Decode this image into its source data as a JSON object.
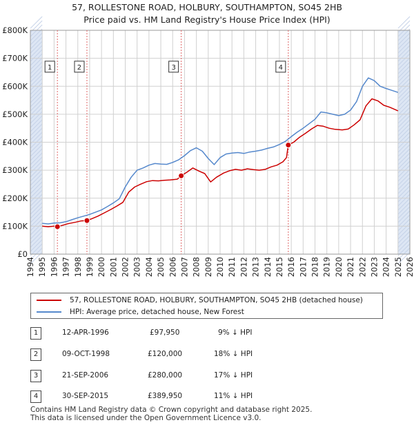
{
  "header": {
    "title_line1": "57, ROLLESTONE ROAD, HOLBURY, SOUTHAMPTON, SO45 2HB",
    "title_line2": "Price paid vs. HM Land Registry's House Price Index (HPI)"
  },
  "colors": {
    "price_line": "#cc0000",
    "hpi_line": "#5588cc",
    "marker_fill": "#cc0000",
    "shade": "#dde6f4",
    "grid": "#d0d0d0",
    "vline": "#e06666"
  },
  "chart_data": {
    "type": "line",
    "title": "57, ROLLESTONE ROAD, HOLBURY, SOUTHAMPTON, SO45 2HB",
    "subtitle": "Price paid vs. HM Land Registry's House Price Index (HPI)",
    "xlabel": "",
    "ylabel": "",
    "xlim": [
      1994,
      2026
    ],
    "ylim": [
      0,
      800000
    ],
    "grid": true,
    "y_ticks": [
      {
        "value": 0,
        "label": "£0"
      },
      {
        "value": 100000,
        "label": "£100K"
      },
      {
        "value": 200000,
        "label": "£200K"
      },
      {
        "value": 300000,
        "label": "£300K"
      },
      {
        "value": 400000,
        "label": "£400K"
      },
      {
        "value": 500000,
        "label": "£500K"
      },
      {
        "value": 600000,
        "label": "£600K"
      },
      {
        "value": 700000,
        "label": "£700K"
      },
      {
        "value": 800000,
        "label": "£800K"
      }
    ],
    "x_ticks": [
      "1994",
      "1995",
      "1996",
      "1997",
      "1998",
      "1999",
      "2000",
      "2001",
      "2002",
      "2003",
      "2004",
      "2005",
      "2006",
      "2007",
      "2008",
      "2009",
      "2010",
      "2011",
      "2012",
      "2013",
      "2014",
      "2015",
      "2016",
      "2017",
      "2018",
      "2019",
      "2020",
      "2021",
      "2022",
      "2023",
      "2024",
      "2025",
      "2026"
    ],
    "shaded_ranges": [
      [
        1994,
        1995.0
      ],
      [
        2025.0,
        2026
      ]
    ],
    "series": [
      {
        "name": "57, ROLLESTONE ROAD, HOLBURY, SOUTHAMPTON, SO45 2HB (detached house)",
        "color": "#cc0000",
        "x": [
          1995.0,
          1995.5,
          1996.0,
          1996.28,
          1996.7,
          1997.2,
          1997.8,
          1998.3,
          1998.77,
          1999.2,
          1999.7,
          2000.3,
          2000.8,
          2001.3,
          2001.8,
          2002.3,
          2002.8,
          2003.3,
          2003.8,
          2004.3,
          2004.8,
          2005.3,
          2005.8,
          2006.4,
          2006.72,
          2007.2,
          2007.7,
          2008.2,
          2008.7,
          2009.2,
          2009.7,
          2010.3,
          2010.8,
          2011.3,
          2011.8,
          2012.3,
          2012.8,
          2013.3,
          2013.8,
          2014.3,
          2014.8,
          2015.3,
          2015.6,
          2015.75,
          2016.2,
          2016.7,
          2017.2,
          2017.7,
          2018.2,
          2018.7,
          2019.2,
          2019.7,
          2020.3,
          2020.8,
          2021.3,
          2021.8,
          2022.3,
          2022.8,
          2023.3,
          2023.8,
          2024.3,
          2024.8,
          2025.0
        ],
        "values": [
          100000,
          98000,
          100000,
          97950,
          103000,
          109000,
          114000,
          119000,
          120000,
          127000,
          136000,
          149000,
          160000,
          172000,
          185000,
          222000,
          240000,
          250000,
          259000,
          263000,
          262000,
          264000,
          265000,
          268000,
          280000,
          293000,
          308000,
          297000,
          288000,
          258000,
          275000,
          290000,
          298000,
          303000,
          300000,
          305000,
          302000,
          300000,
          303000,
          312000,
          318000,
          330000,
          345000,
          389950,
          400000,
          418000,
          432000,
          447000,
          460000,
          457000,
          450000,
          446000,
          444000,
          447000,
          462000,
          480000,
          530000,
          555000,
          548000,
          532000,
          525000,
          516000,
          512000
        ]
      },
      {
        "name": "HPI: Average price, detached house, New Forest",
        "color": "#5588cc",
        "x": [
          1995.0,
          1995.5,
          1996.0,
          1996.5,
          1997.0,
          1997.5,
          1998.0,
          1998.5,
          1999.0,
          1999.5,
          2000.0,
          2000.5,
          2001.0,
          2001.5,
          2002.0,
          2002.5,
          2003.0,
          2003.5,
          2004.0,
          2004.5,
          2005.0,
          2005.5,
          2006.0,
          2006.5,
          2007.0,
          2007.5,
          2008.0,
          2008.5,
          2009.0,
          2009.5,
          2010.0,
          2010.5,
          2011.0,
          2011.5,
          2012.0,
          2012.5,
          2013.0,
          2013.5,
          2014.0,
          2014.5,
          2015.0,
          2015.5,
          2016.0,
          2016.5,
          2017.0,
          2017.5,
          2018.0,
          2018.5,
          2019.0,
          2019.5,
          2020.0,
          2020.5,
          2021.0,
          2021.5,
          2022.0,
          2022.5,
          2023.0,
          2023.5,
          2024.0,
          2024.5,
          2025.0
        ],
        "values": [
          110000,
          108000,
          111000,
          112000,
          116000,
          123000,
          130000,
          136000,
          142000,
          150000,
          158000,
          170000,
          183000,
          198000,
          240000,
          275000,
          300000,
          308000,
          318000,
          324000,
          322000,
          321000,
          328000,
          337000,
          352000,
          370000,
          380000,
          368000,
          342000,
          320000,
          345000,
          358000,
          361000,
          363000,
          360000,
          365000,
          368000,
          372000,
          378000,
          383000,
          392000,
          403000,
          420000,
          436000,
          450000,
          466000,
          482000,
          508000,
          505000,
          500000,
          495000,
          500000,
          515000,
          545000,
          600000,
          630000,
          620000,
          600000,
          592000,
          585000,
          578000
        ]
      }
    ],
    "markers": [
      {
        "id": "1",
        "x": 1996.28,
        "y": 97950,
        "box_y": 670000
      },
      {
        "id": "2",
        "x": 1998.77,
        "y": 120000,
        "box_y": 670000
      },
      {
        "id": "3",
        "x": 2006.72,
        "y": 280000,
        "box_y": 670000
      },
      {
        "id": "4",
        "x": 2015.75,
        "y": 389950,
        "box_y": 670000
      }
    ]
  },
  "legend": {
    "items": [
      {
        "label": "57, ROLLESTONE ROAD, HOLBURY, SOUTHAMPTON, SO45 2HB (detached house)",
        "color": "#cc0000"
      },
      {
        "label": "HPI: Average price, detached house, New Forest",
        "color": "#5588cc"
      }
    ]
  },
  "transactions": [
    {
      "id": "1",
      "date": "12-APR-1996",
      "price": "£97,950",
      "hpi": "9% ↓ HPI"
    },
    {
      "id": "2",
      "date": "09-OCT-1998",
      "price": "£120,000",
      "hpi": "18% ↓ HPI"
    },
    {
      "id": "3",
      "date": "21-SEP-2006",
      "price": "£280,000",
      "hpi": "17% ↓ HPI"
    },
    {
      "id": "4",
      "date": "30-SEP-2015",
      "price": "£389,950",
      "hpi": "11% ↓ HPI"
    }
  ],
  "footer": {
    "line1": "Contains HM Land Registry data © Crown copyright and database right 2025.",
    "line2": "This data is licensed under the Open Government Licence v3.0."
  }
}
